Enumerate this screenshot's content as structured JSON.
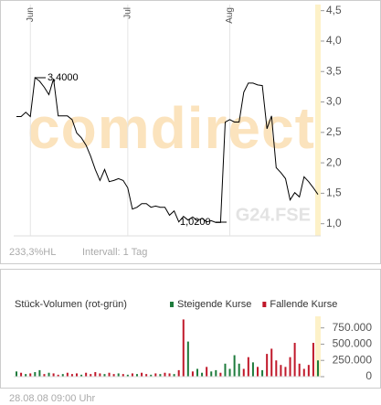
{
  "chart_data": [
    {
      "type": "line",
      "watermark": "comdirect",
      "exchange": "G24.FSE",
      "range_note": "233,3%HL",
      "interval": "Intervall: 1 Tag",
      "annotations": [
        "3,4000",
        "1,0200"
      ],
      "color": "#000000",
      "values": [
        2.76,
        2.76,
        2.83,
        2.76,
        3.4,
        3.34,
        3.24,
        3.12,
        3.38,
        2.77,
        2.77,
        2.77,
        2.71,
        2.49,
        2.41,
        2.29,
        2.11,
        1.89,
        1.71,
        1.89,
        1.69,
        1.71,
        1.74,
        1.71,
        1.59,
        1.24,
        1.27,
        1.33,
        1.33,
        1.27,
        1.29,
        1.27,
        1.27,
        1.14,
        1.21,
        1.03,
        1.12,
        1.06,
        1.11,
        1.05,
        1.09,
        1.03,
        1.05,
        1.02,
        1.02,
        2.67,
        2.71,
        2.67,
        2.67,
        3.16,
        3.31,
        3.31,
        3.28,
        3.27,
        2.56,
        2.77,
        1.92,
        1.84,
        1.74,
        1.39,
        1.51,
        1.44,
        1.77,
        1.69,
        1.59,
        1.48
      ],
      "xticks": [
        {
          "value": 3,
          "label": "Jun"
        },
        {
          "value": 24,
          "label": "Jul"
        },
        {
          "value": 46,
          "label": "Aug"
        }
      ],
      "xlim": [
        0,
        65
      ],
      "ylim": [
        0.8,
        4.6
      ],
      "yticks": [
        {
          "value": 1,
          "label": "1,0"
        },
        {
          "value": 1.5,
          "label": "1,5"
        },
        {
          "value": 2,
          "label": "2,0"
        },
        {
          "value": 2.5,
          "label": "2,5"
        },
        {
          "value": 3,
          "label": "3,0"
        },
        {
          "value": 3.5,
          "label": "3,5"
        },
        {
          "value": 4,
          "label": "4,0"
        },
        {
          "value": 4.5,
          "label": "4,5"
        }
      ]
    },
    {
      "type": "bar",
      "title": "Stück-Volumen (rot-grün)",
      "xlim": [
        0,
        65
      ],
      "ylim": [
        0,
        900000
      ],
      "yticks": [
        0,
        {
          "value": 250000,
          "label": "250.000"
        },
        {
          "value": 500000,
          "label": "500.000"
        },
        {
          "value": 750000,
          "label": "750.000"
        }
      ],
      "series": [
        {
          "name": "Steigende Kurse",
          "color": "#1e7b3c",
          "values": [
            80000,
            null,
            40000,
            null,
            70000,
            100000,
            null,
            60000,
            null,
            null,
            40000,
            null,
            null,
            null,
            30000,
            null,
            null,
            null,
            null,
            40000,
            null,
            null,
            50000,
            null,
            30000,
            null,
            40000,
            null,
            null,
            30000,
            null,
            40000,
            null,
            null,
            40000,
            null,
            null,
            540000,
            null,
            120000,
            60000,
            null,
            80000,
            100000,
            null,
            200000,
            120000,
            330000,
            200000,
            null,
            null,
            220000,
            null,
            100000,
            null,
            null,
            null,
            null,
            null,
            null,
            null,
            null,
            null,
            null,
            null,
            250000
          ]
        },
        {
          "name": "Fallende Kurse",
          "color": "#c0182a",
          "values": [
            null,
            60000,
            null,
            50000,
            null,
            null,
            40000,
            null,
            50000,
            30000,
            null,
            60000,
            40000,
            50000,
            null,
            60000,
            40000,
            70000,
            50000,
            null,
            60000,
            40000,
            null,
            40000,
            null,
            50000,
            null,
            60000,
            40000,
            null,
            50000,
            null,
            60000,
            50000,
            null,
            100000,
            880000,
            null,
            80000,
            null,
            null,
            150000,
            null,
            null,
            60000,
            null,
            null,
            null,
            null,
            120000,
            300000,
            null,
            150000,
            null,
            350000,
            430000,
            250000,
            180000,
            150000,
            300000,
            520000,
            200000,
            120000,
            180000,
            520000,
            null
          ]
        }
      ]
    },
    {
      "type": "text",
      "timestamp": "28.08.08   09:00 Uhr"
    }
  ]
}
